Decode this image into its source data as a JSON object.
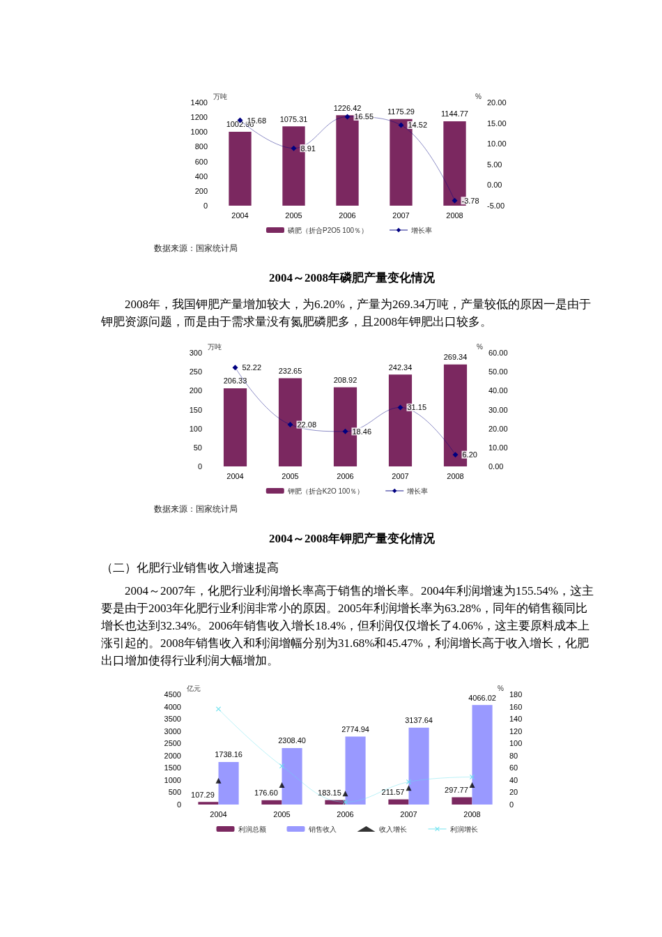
{
  "chart_data": [
    {
      "type": "bar",
      "title": "2004～2008年磷肥产量变化情况",
      "annotations": [
        "数据来源：国家统计局"
      ],
      "ylabel": "万吨",
      "y2label": "%",
      "categories": [
        "2004",
        "2005",
        "2006",
        "2007",
        "2008"
      ],
      "series": [
        {
          "name": "磷肥（折合P2O5 100％）",
          "color": "#7b2860",
          "values": [
            1002.96,
            1075.31,
            1226.42,
            1175.29,
            1144.77
          ],
          "value_labels": [
            "1002.96",
            "1075.31",
            "1226.42",
            "1175.29",
            "1144.77"
          ]
        },
        {
          "name": "增长率",
          "type": "line",
          "axis": "y2",
          "color": "#000080",
          "marker": "diamond",
          "values": [
            15.68,
            8.91,
            16.55,
            14.52,
            -3.78
          ],
          "value_labels": [
            "15.68",
            "8.91",
            "16.55",
            "14.52",
            "-3.78"
          ]
        }
      ],
      "ylim": [
        0,
        1400
      ],
      "yticks": [
        0,
        200,
        400,
        600,
        800,
        1000,
        1200,
        1400
      ],
      "y2lim": [
        -5,
        20
      ],
      "y2ticks": [
        {
          "value": -5,
          "label": "-5.00"
        },
        {
          "value": 0,
          "label": "0.00"
        },
        {
          "value": 5,
          "label": "5.00"
        },
        {
          "value": 10,
          "label": "10.00"
        },
        {
          "value": 15,
          "label": "15.00"
        },
        {
          "value": 20,
          "label": "20.00"
        }
      ],
      "legend": "bottom"
    },
    {
      "type": "bar",
      "title": "2004～2008年钾肥产量变化情况",
      "annotations": [
        "2008年，我国钾肥产量增加较大，为6.20%，产量为269.34万吨，产量较低的原因一是由于钾肥资源问题，而是由于需求量没有氮肥磷肥多，且2008年钾肥出口较多。",
        "数据来源：国家统计局"
      ],
      "ylabel": "万吨",
      "y2label": "%",
      "categories": [
        "2004",
        "2005",
        "2006",
        "2007",
        "2008"
      ],
      "series": [
        {
          "name": "钾肥（折合K2O 100％）",
          "color": "#7b2860",
          "values": [
            206.33,
            232.65,
            208.92,
            242.34,
            269.34
          ],
          "value_labels": [
            "206.33",
            "232.65",
            "208.92",
            "242.34",
            "269.34"
          ]
        },
        {
          "name": "增长率",
          "type": "line",
          "axis": "y2",
          "color": "#000080",
          "marker": "diamond",
          "values": [
            52.22,
            22.08,
            18.46,
            31.15,
            6.2
          ],
          "value_labels": [
            "52.22",
            "22.08",
            "18.46",
            "31.15",
            "6.20"
          ]
        }
      ],
      "ylim": [
        0,
        300
      ],
      "yticks": [
        0,
        50,
        100,
        150,
        200,
        250,
        300
      ],
      "y2lim": [
        0,
        60
      ],
      "y2ticks": [
        {
          "value": 0,
          "label": "0.00"
        },
        {
          "value": 10,
          "label": "10.00"
        },
        {
          "value": 20,
          "label": "20.00"
        },
        {
          "value": 30,
          "label": "30.00"
        },
        {
          "value": 40,
          "label": "40.00"
        },
        {
          "value": 50,
          "label": "50.00"
        },
        {
          "value": 60,
          "label": "60.00"
        }
      ],
      "legend": "bottom"
    },
    {
      "type": "bar",
      "annotations": [
        "（二）化肥行业销售收入增速提高",
        "2004～2007年，化肥行业利润增长率高于销售的增长率。2004年利润增速为155.54%，这主要是由于2003年化肥行业利润非常小的原因。2005年利润增长率为63.28%，同年的销售额同比增长也达到32.34%。2006年销售收入增长18.4%，但利润仅仅增长了4.06%，这主要原料成本上涨引起的。2008年销售收入和利润增幅分别为31.68%和45.47%，利润增长高于收入增长，化肥出口增加使得行业利润大幅增加。"
      ],
      "ylabel": "亿元",
      "y2label": "%",
      "categories": [
        "2004",
        "2005",
        "2006",
        "2007",
        "2008"
      ],
      "series": [
        {
          "name": "利润总额",
          "color": "#7b2860",
          "values": [
            107.29,
            176.6,
            183.15,
            211.57,
            297.77
          ],
          "value_labels": [
            "107.29",
            "176.60",
            "183.15",
            "211.57",
            "297.77"
          ]
        },
        {
          "name": "销售收入",
          "color": "#9999ff",
          "values": [
            1738.16,
            2308.4,
            2774.94,
            3137.64,
            4066.02
          ],
          "value_labels": [
            "1738.16",
            "2308.40",
            "2774.94",
            "3137.64",
            "4066.02"
          ]
        },
        {
          "name": "收入增长",
          "type": "scatter",
          "axis": "y2",
          "color": "#000000",
          "marker": "triangle",
          "values": [
            39,
            32,
            18,
            27,
            32
          ]
        },
        {
          "name": "利润增长",
          "type": "line",
          "axis": "y2",
          "color": "#66e0ee",
          "marker": "cross",
          "values": [
            156,
            63,
            4,
            37,
            45
          ]
        }
      ],
      "ylim": [
        0,
        4500
      ],
      "yticks": [
        0,
        500,
        1000,
        1500,
        2000,
        2500,
        3000,
        3500,
        4000,
        4500
      ],
      "y2lim": [
        0,
        180
      ],
      "y2ticks": [
        0,
        20,
        40,
        60,
        80,
        100,
        120,
        140,
        160,
        180
      ],
      "legend": "bottom"
    }
  ]
}
